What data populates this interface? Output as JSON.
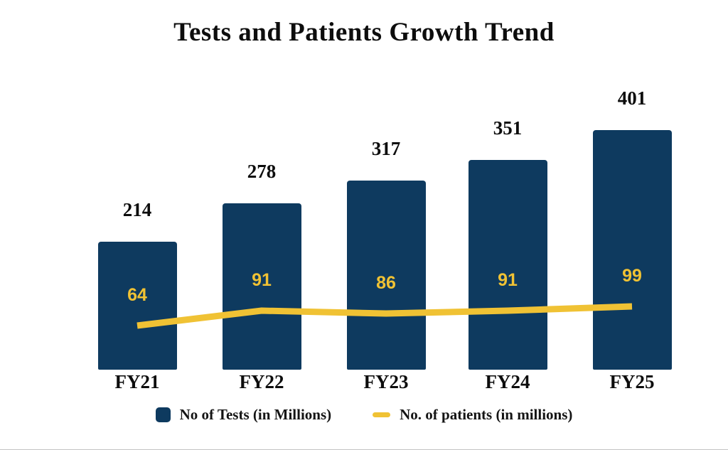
{
  "chart_data": {
    "type": "bar",
    "subtype": "bar-line-combo",
    "title": "Tests and Patients Growth Trend",
    "categories": [
      "FY21",
      "FY22",
      "FY23",
      "FY24",
      "FY25"
    ],
    "series": [
      {
        "name": "No of Tests (in Millions)",
        "type": "bar",
        "color": "#0e3a5f",
        "values": [
          214,
          278,
          317,
          351,
          401
        ]
      },
      {
        "name": "No. of patients (in millions)",
        "type": "line",
        "color": "#f0c234",
        "values": [
          64,
          91,
          86,
          91,
          99
        ]
      }
    ],
    "legend_position": "bottom",
    "grid": false,
    "axes_hidden": true,
    "data_labels_shown": true
  },
  "colors": {
    "background": "#ffffff",
    "bar_navy": "#0e3a5f",
    "line_gold": "#f0c234",
    "text_black": "#0d0d0d",
    "bottom_divider": "#c4c4c4"
  }
}
